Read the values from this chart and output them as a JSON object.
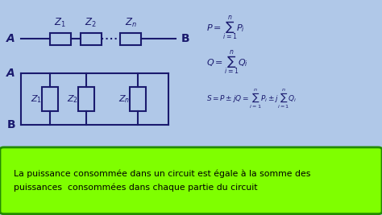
{
  "bg_color": "#b0c8e8",
  "green_box_color": "#7fff00",
  "green_box_text": "La puissance consommée dans un circuit est égale à la somme des\npuissances  consommées dans chaque partie du circuit",
  "formula1": "$P = \\sum_{i=1}^{n} P_i$",
  "formula2": "$Q= \\sum_{i=1}^{n} Q_i$",
  "formula3": "$S = P \\pm jQ = \\sum_{i=1}^{n} P_i \\pm j\\sum_{i=1}^{n} Q_i$",
  "text_color": "#1a1a6e",
  "formula_color": "#1a1a6e"
}
